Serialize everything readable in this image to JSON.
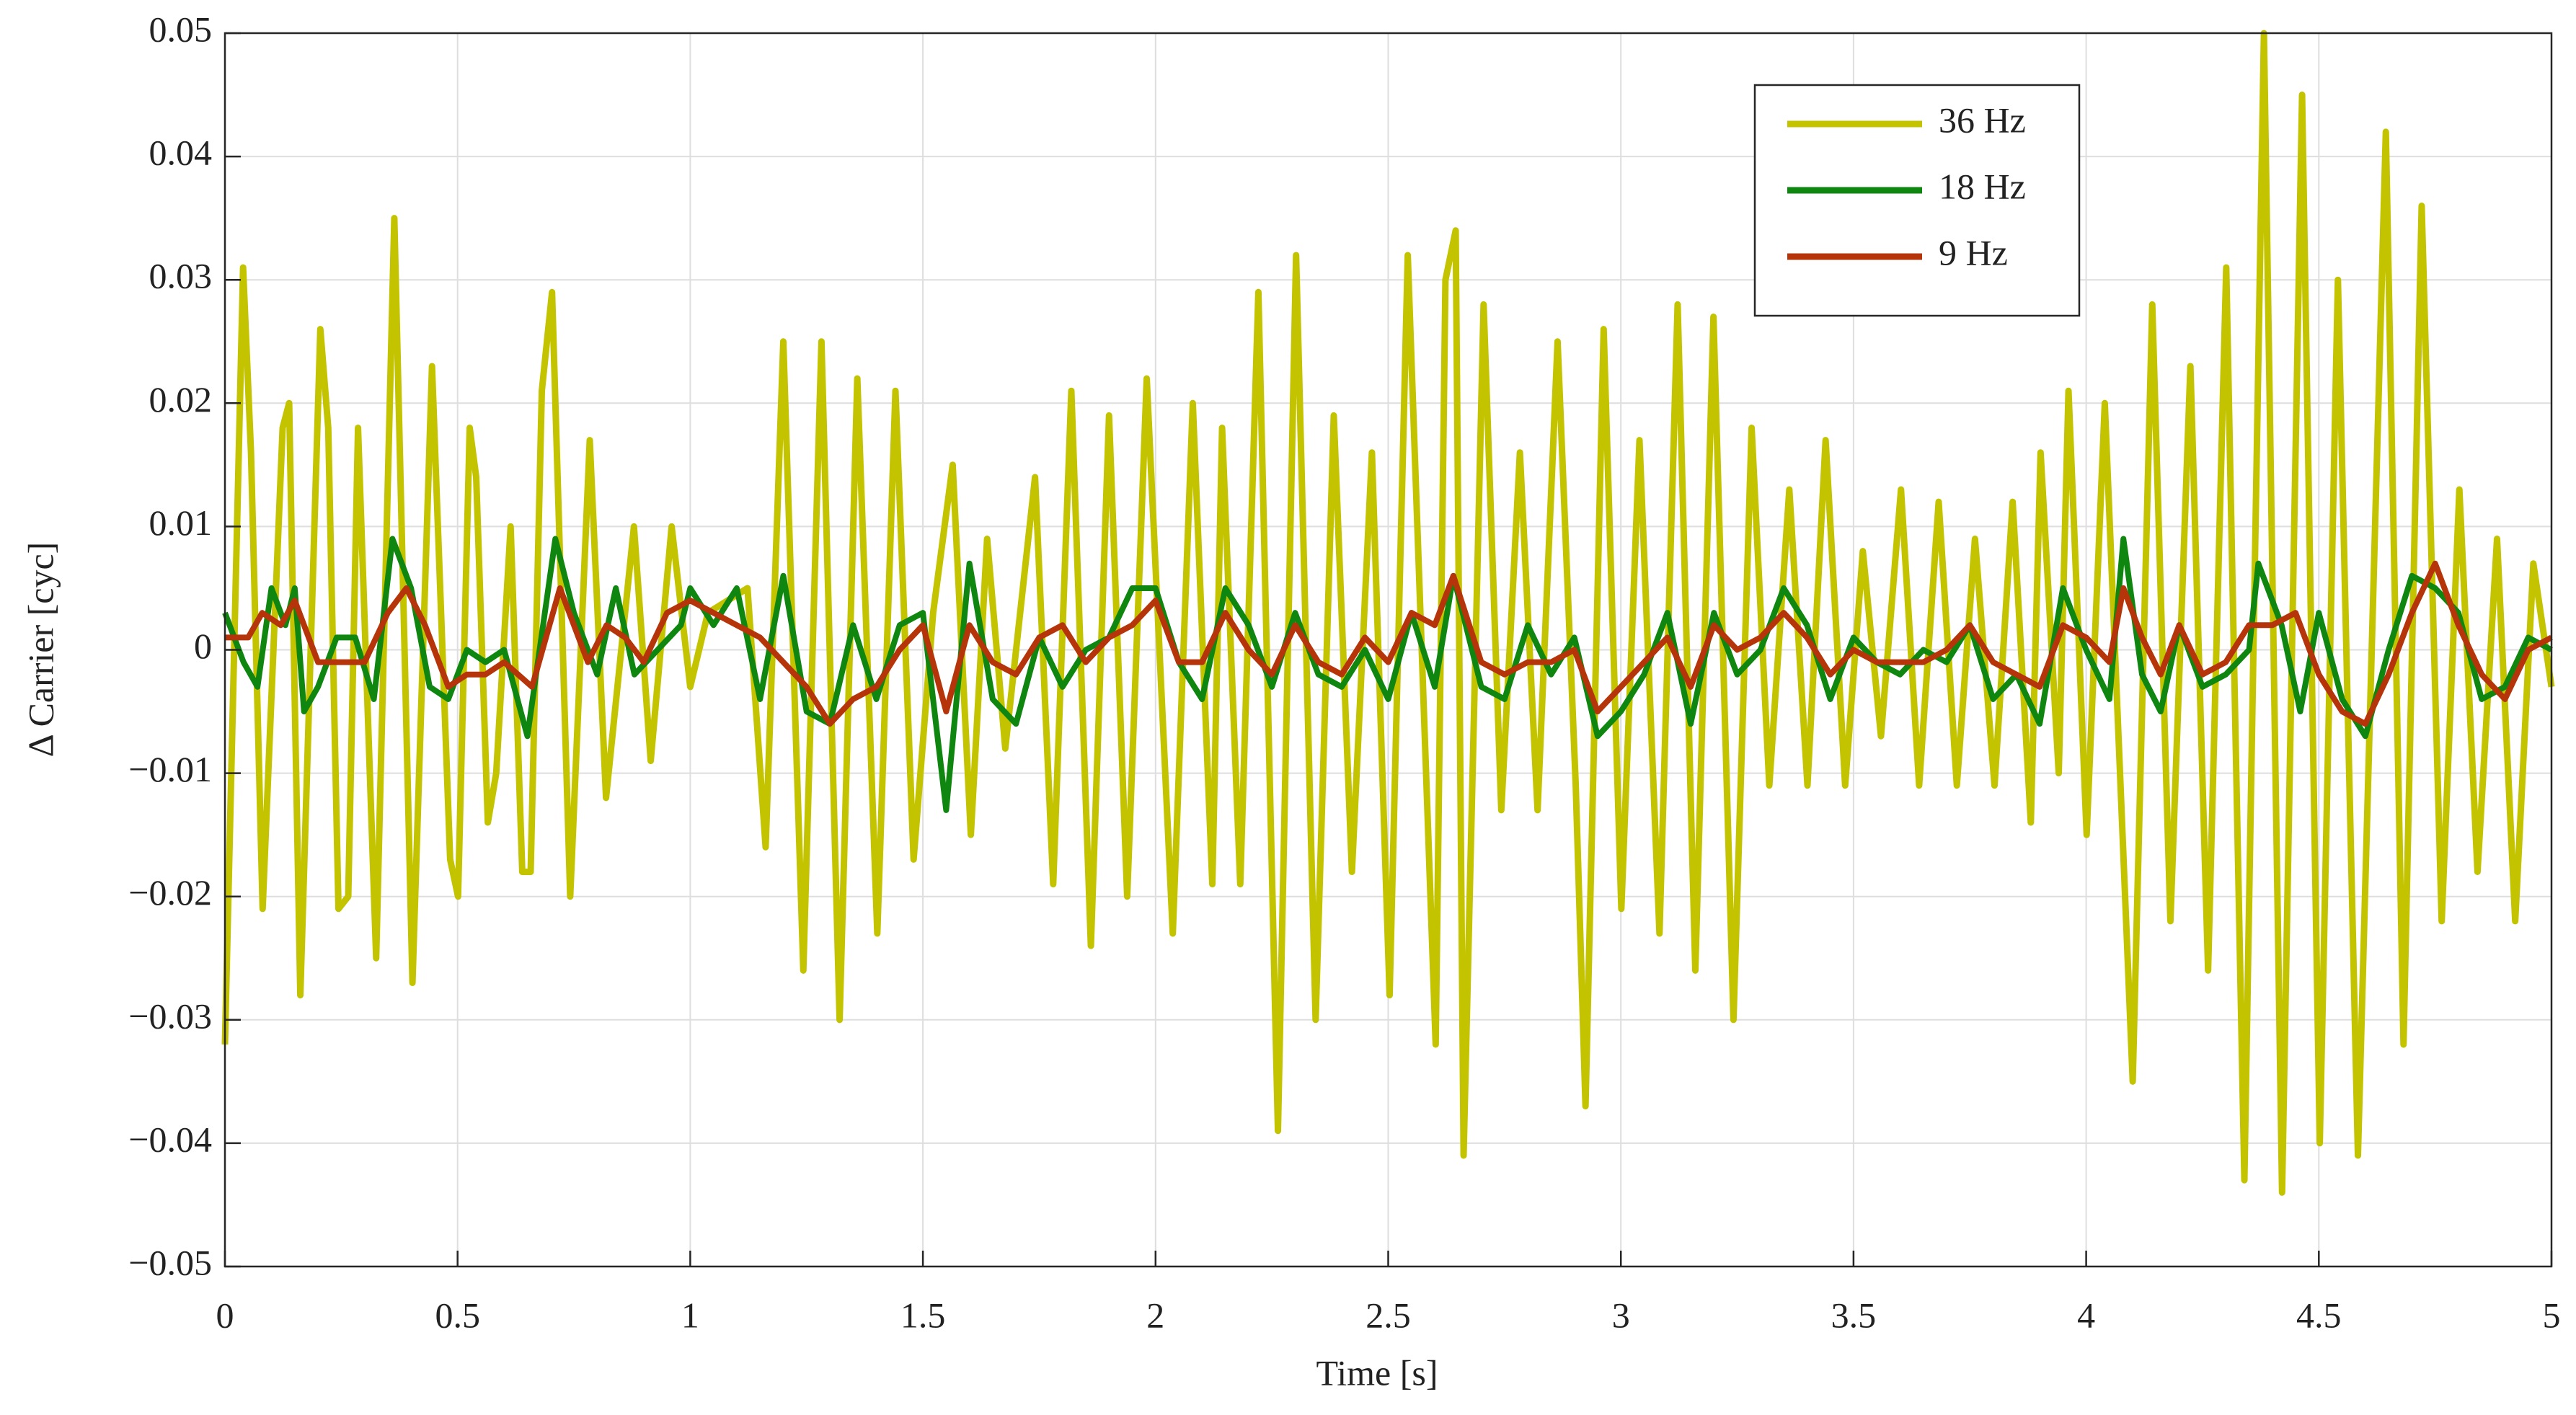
{
  "chart_data": {
    "type": "line",
    "xlabel": "Time [s]",
    "ylabel": "Δ Carrier [cyc]",
    "xlim": [
      0,
      5
    ],
    "ylim": [
      -0.05,
      0.05
    ],
    "xticks": [
      0,
      0.5,
      1,
      1.5,
      2,
      2.5,
      3,
      3.5,
      4,
      4.5,
      5
    ],
    "yticks": [
      {
        "value": -0.05,
        "label": "−0.05"
      },
      {
        "value": -0.04,
        "label": "−0.04"
      },
      {
        "value": -0.03,
        "label": "−0.03"
      },
      {
        "value": -0.02,
        "label": "−0.02"
      },
      {
        "value": -0.01,
        "label": "−0.01"
      },
      0,
      0.01,
      0.02,
      0.03,
      0.04,
      0.05
    ],
    "grid": true,
    "legend": "upper right",
    "series": [
      {
        "name": "36 Hz",
        "color": "#c3c300",
        "x": [
          0,
          0.039,
          0.056,
          0.081,
          0.124,
          0.138,
          0.162,
          0.205,
          0.222,
          0.244,
          0.265,
          0.286,
          0.325,
          0.364,
          0.403,
          0.445,
          0.484,
          0.501,
          0.526,
          0.54,
          0.565,
          0.583,
          0.614,
          0.639,
          0.657,
          0.681,
          0.703,
          0.742,
          0.784,
          0.819,
          0.879,
          0.915,
          0.96,
          1.0,
          1.038,
          1.123,
          1.162,
          1.2,
          1.243,
          1.282,
          1.321,
          1.359,
          1.402,
          1.441,
          1.48,
          1.522,
          1.564,
          1.603,
          1.638,
          1.677,
          1.741,
          1.78,
          1.819,
          1.861,
          1.9,
          1.939,
          1.981,
          2.037,
          2.08,
          2.122,
          2.143,
          2.182,
          2.221,
          2.263,
          2.302,
          2.344,
          2.383,
          2.422,
          2.465,
          2.503,
          2.542,
          2.602,
          2.623,
          2.645,
          2.662,
          2.705,
          2.743,
          2.783,
          2.821,
          2.864,
          2.903,
          2.924,
          2.963,
          3.001,
          3.04,
          3.083,
          3.122,
          3.16,
          3.199,
          3.242,
          3.281,
          3.319,
          3.362,
          3.401,
          3.44,
          3.482,
          3.52,
          3.559,
          3.602,
          3.641,
          3.683,
          3.722,
          3.761,
          3.803,
          3.842,
          3.881,
          3.902,
          3.941,
          3.962,
          4.001,
          4.04,
          4.1,
          4.142,
          4.181,
          4.224,
          4.262,
          4.301,
          4.34,
          4.382,
          4.421,
          4.464,
          4.502,
          4.541,
          4.584,
          4.644,
          4.682,
          4.721,
          4.764,
          4.802,
          4.841,
          4.883,
          4.922,
          4.961,
          5.0
        ],
        "values": [
          -0.032,
          0.031,
          0.016,
          -0.021,
          0.018,
          0.02,
          -0.028,
          0.026,
          0.018,
          -0.021,
          -0.02,
          0.018,
          -0.025,
          0.035,
          -0.027,
          0.023,
          -0.017,
          -0.02,
          0.018,
          0.014,
          -0.014,
          -0.01,
          0.01,
          -0.018,
          -0.018,
          0.021,
          0.029,
          -0.02,
          0.017,
          -0.012,
          0.01,
          -0.009,
          0.01,
          -0.003,
          0.003,
          0.005,
          -0.016,
          0.025,
          -0.026,
          0.025,
          -0.03,
          0.022,
          -0.023,
          0.021,
          -0.017,
          0.003,
          0.015,
          -0.015,
          0.009,
          -0.008,
          0.014,
          -0.019,
          0.021,
          -0.024,
          0.019,
          -0.02,
          0.022,
          -0.023,
          0.02,
          -0.019,
          0.018,
          -0.019,
          0.029,
          -0.039,
          0.032,
          -0.03,
          0.019,
          -0.018,
          0.016,
          -0.028,
          0.032,
          -0.032,
          0.03,
          0.034,
          -0.041,
          0.028,
          -0.013,
          0.016,
          -0.013,
          0.025,
          -0.011,
          -0.037,
          0.026,
          -0.021,
          0.017,
          -0.023,
          0.028,
          -0.026,
          0.027,
          -0.03,
          0.018,
          -0.011,
          0.013,
          -0.011,
          0.017,
          -0.011,
          0.008,
          -0.007,
          0.013,
          -0.011,
          0.012,
          -0.011,
          0.009,
          -0.011,
          0.012,
          -0.014,
          0.016,
          -0.01,
          0.021,
          -0.015,
          0.02,
          -0.035,
          0.028,
          -0.022,
          0.023,
          -0.026,
          0.031,
          -0.043,
          0.05,
          -0.044,
          0.045,
          -0.04,
          0.03,
          -0.041,
          0.042,
          -0.032,
          0.036,
          -0.022,
          0.013,
          -0.018,
          0.009,
          -0.022,
          0.007,
          -0.003
        ]
      },
      {
        "name": "18 Hz",
        "color": "#0f860f",
        "x": [
          0,
          0.04,
          0.07,
          0.1,
          0.13,
          0.15,
          0.17,
          0.2,
          0.24,
          0.28,
          0.32,
          0.36,
          0.4,
          0.44,
          0.48,
          0.52,
          0.56,
          0.6,
          0.65,
          0.71,
          0.75,
          0.8,
          0.84,
          0.88,
          0.93,
          0.98,
          1.0,
          1.05,
          1.1,
          1.15,
          1.2,
          1.25,
          1.3,
          1.35,
          1.4,
          1.45,
          1.5,
          1.55,
          1.6,
          1.65,
          1.7,
          1.75,
          1.8,
          1.85,
          1.9,
          1.95,
          2.0,
          2.05,
          2.1,
          2.15,
          2.2,
          2.25,
          2.3,
          2.35,
          2.4,
          2.45,
          2.5,
          2.55,
          2.6,
          2.64,
          2.7,
          2.75,
          2.8,
          2.85,
          2.9,
          2.95,
          3.0,
          3.05,
          3.1,
          3.15,
          3.2,
          3.25,
          3.3,
          3.35,
          3.4,
          3.45,
          3.5,
          3.55,
          3.6,
          3.65,
          3.7,
          3.75,
          3.8,
          3.85,
          3.9,
          3.95,
          4.0,
          4.05,
          4.08,
          4.12,
          4.16,
          4.2,
          4.25,
          4.3,
          4.35,
          4.37,
          4.42,
          4.46,
          4.5,
          4.55,
          4.6,
          4.65,
          4.7,
          4.75,
          4.8,
          4.85,
          4.9,
          4.95,
          5.0
        ],
        "values": [
          0.003,
          -0.001,
          -0.003,
          0.005,
          0.002,
          0.005,
          -0.005,
          -0.003,
          0.001,
          0.001,
          -0.004,
          0.009,
          0.005,
          -0.003,
          -0.004,
          0.0,
          -0.001,
          0.0,
          -0.007,
          0.009,
          0.003,
          -0.002,
          0.005,
          -0.002,
          0.0,
          0.002,
          0.005,
          0.002,
          0.005,
          -0.004,
          0.006,
          -0.005,
          -0.006,
          0.002,
          -0.004,
          0.002,
          0.003,
          -0.013,
          0.007,
          -0.004,
          -0.006,
          0.001,
          -0.003,
          0.0,
          0.001,
          0.005,
          0.005,
          -0.001,
          -0.004,
          0.005,
          0.002,
          -0.003,
          0.003,
          -0.002,
          -0.003,
          0.0,
          -0.004,
          0.003,
          -0.003,
          0.006,
          -0.003,
          -0.004,
          0.002,
          -0.002,
          0.001,
          -0.007,
          -0.005,
          -0.002,
          0.003,
          -0.006,
          0.003,
          -0.002,
          0.0,
          0.005,
          0.002,
          -0.004,
          0.001,
          -0.001,
          -0.002,
          0.0,
          -0.001,
          0.002,
          -0.004,
          -0.002,
          -0.006,
          0.005,
          0.0,
          -0.004,
          0.009,
          -0.002,
          -0.005,
          0.002,
          -0.003,
          -0.002,
          0.0,
          0.007,
          0.002,
          -0.005,
          0.003,
          -0.004,
          -0.007,
          0.0,
          0.006,
          0.005,
          0.003,
          -0.004,
          -0.003,
          0.001,
          0.0
        ]
      },
      {
        "name": "9 Hz",
        "color": "#b5340a",
        "x": [
          0,
          0.05,
          0.08,
          0.12,
          0.15,
          0.2,
          0.25,
          0.3,
          0.35,
          0.39,
          0.43,
          0.48,
          0.52,
          0.56,
          0.6,
          0.66,
          0.72,
          0.78,
          0.82,
          0.86,
          0.9,
          0.95,
          1.0,
          1.05,
          1.1,
          1.15,
          1.2,
          1.25,
          1.3,
          1.35,
          1.4,
          1.45,
          1.5,
          1.55,
          1.6,
          1.65,
          1.7,
          1.75,
          1.8,
          1.85,
          1.9,
          1.95,
          2.0,
          2.05,
          2.1,
          2.15,
          2.2,
          2.25,
          2.3,
          2.35,
          2.4,
          2.45,
          2.5,
          2.55,
          2.6,
          2.64,
          2.7,
          2.75,
          2.8,
          2.85,
          2.9,
          2.95,
          3.0,
          3.05,
          3.1,
          3.15,
          3.2,
          3.25,
          3.3,
          3.35,
          3.4,
          3.45,
          3.5,
          3.55,
          3.6,
          3.65,
          3.7,
          3.75,
          3.8,
          3.85,
          3.9,
          3.95,
          4.0,
          4.05,
          4.08,
          4.12,
          4.16,
          4.2,
          4.25,
          4.3,
          4.35,
          4.4,
          4.45,
          4.5,
          4.55,
          4.6,
          4.65,
          4.7,
          4.75,
          4.8,
          4.85,
          4.9,
          4.95,
          5.0
        ],
        "values": [
          0.001,
          0.001,
          0.003,
          0.002,
          0.004,
          -0.001,
          -0.001,
          -0.001,
          0.003,
          0.005,
          0.002,
          -0.003,
          -0.002,
          -0.002,
          -0.001,
          -0.003,
          0.005,
          -0.001,
          0.002,
          0.001,
          -0.001,
          0.003,
          0.004,
          0.003,
          0.002,
          0.001,
          -0.001,
          -0.003,
          -0.006,
          -0.004,
          -0.003,
          0.0,
          0.002,
          -0.005,
          0.002,
          -0.001,
          -0.002,
          0.001,
          0.002,
          -0.001,
          0.001,
          0.002,
          0.004,
          -0.001,
          -0.001,
          0.003,
          0.0,
          -0.002,
          0.002,
          -0.001,
          -0.002,
          0.001,
          -0.001,
          0.003,
          0.002,
          0.006,
          -0.001,
          -0.002,
          -0.001,
          -0.001,
          0.0,
          -0.005,
          -0.003,
          -0.001,
          0.001,
          -0.003,
          0.002,
          0.0,
          0.001,
          0.003,
          0.001,
          -0.002,
          0.0,
          -0.001,
          -0.001,
          -0.001,
          0.0,
          0.002,
          -0.001,
          -0.002,
          -0.003,
          0.002,
          0.001,
          -0.001,
          0.005,
          0.001,
          -0.002,
          0.002,
          -0.002,
          -0.001,
          0.002,
          0.002,
          0.003,
          -0.002,
          -0.005,
          -0.006,
          -0.002,
          0.003,
          0.007,
          0.002,
          -0.002,
          -0.004,
          0.0,
          0.001
        ]
      }
    ]
  }
}
